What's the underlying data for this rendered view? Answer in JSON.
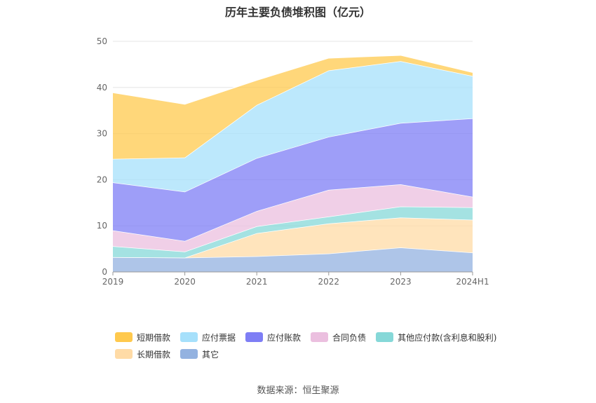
{
  "chart_data": {
    "type": "area",
    "stacked": true,
    "title": "历年主要负债堆积图（亿元）",
    "categories": [
      "2019",
      "2020",
      "2021",
      "2022",
      "2023",
      "2024H1"
    ],
    "ylim": [
      0,
      50
    ],
    "yticks": [
      0,
      10,
      20,
      30,
      40,
      50
    ],
    "grid": true,
    "legend_position": "bottom",
    "series": [
      {
        "name": "其它",
        "color": "#93b2e0",
        "values": [
          3.2,
          3.1,
          3.4,
          4.0,
          5.3,
          4.2
        ]
      },
      {
        "name": "长期借款",
        "color": "#ffdba6",
        "values": [
          0.0,
          0.0,
          5.0,
          6.5,
          6.5,
          7.1
        ]
      },
      {
        "name": "其他应付款(含利息和股利)",
        "color": "#86d8d8",
        "values": [
          2.4,
          1.3,
          1.5,
          1.5,
          2.4,
          2.7
        ]
      },
      {
        "name": "合同负债",
        "color": "#ebbfdf",
        "values": [
          3.4,
          2.3,
          3.3,
          5.8,
          4.8,
          2.3
        ]
      },
      {
        "name": "应付账款",
        "color": "#7e7ef5",
        "values": [
          10.4,
          10.7,
          11.5,
          11.5,
          13.3,
          17.0
        ]
      },
      {
        "name": "应付票据",
        "color": "#a6e0fb",
        "values": [
          5.1,
          7.4,
          11.5,
          14.4,
          13.4,
          9.2
        ]
      },
      {
        "name": "短期借款",
        "color": "#ffc94d",
        "values": [
          14.4,
          11.6,
          5.4,
          2.7,
          1.3,
          0.8
        ]
      }
    ],
    "legend_order": [
      "短期借款",
      "应付票据",
      "应付账款",
      "合同负债",
      "其他应付款(含利息和股利)",
      "长期借款",
      "其它"
    ]
  },
  "source": "数据来源：恒生聚源"
}
